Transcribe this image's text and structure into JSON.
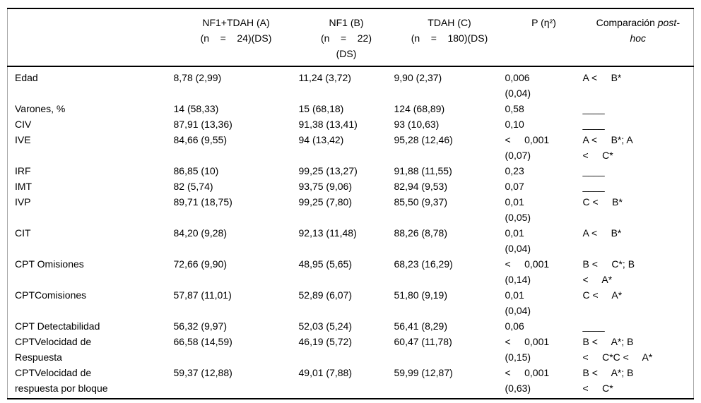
{
  "table": {
    "header": {
      "col_label": "",
      "col_a": "NF1+TDAH (A)\n(n    =    24)(DS)",
      "col_b": "NF1 (B)\n(n    =    22)\n(DS)",
      "col_c": "TDAH (C)\n(n    =    180)(DS)",
      "col_p": "P (η²)",
      "col_comp_normal": "Comparación ",
      "col_comp_italic": "post-\nhoc"
    },
    "rows": [
      {
        "label": "Edad",
        "a": "8,78 (2,99)",
        "b": "11,24 (3,72)",
        "c": "9,90 (2,37)",
        "p": "0,006\n(0,04)",
        "comp": "A <     B*"
      },
      {
        "label": "Varones, %",
        "a": "14 (58,33)",
        "b": "15 (68,18)",
        "c": "124 (68,89)",
        "p": "0,58",
        "comp": "____"
      },
      {
        "label": "CIV",
        "a": "87,91 (13,36)",
        "b": "91,38 (13,41)",
        "c": "93 (10,63)",
        "p": "0,10",
        "comp": "____"
      },
      {
        "label": "IVE",
        "a": "84,66 (9,55)",
        "b": "94 (13,42)",
        "c": "95,28 (12,46)",
        "p": "<     0,001\n(0,07)",
        "comp": "A <     B*; A\n<     C*"
      },
      {
        "label": "IRF",
        "a": "86,85 (10)",
        "b": "99,25 (13,27)",
        "c": "91,88 (11,55)",
        "p": "0,23",
        "comp": "____"
      },
      {
        "label": "IMT",
        "a": "82 (5,74)",
        "b": "93,75 (9,06)",
        "c": "82,94 (9,53)",
        "p": "0,07",
        "comp": "____"
      },
      {
        "label": "IVP",
        "a": "89,71 (18,75)",
        "b": "99,25 (7,80)",
        "c": "85,50 (9,37)",
        "p": "0,01\n(0,05)",
        "comp": "C <     B*"
      },
      {
        "label": "CIT",
        "a": "84,20 (9,28)",
        "b": "92,13 (11,48)",
        "c": "88,26 (8,78)",
        "p": "0,01\n(0,04)",
        "comp": "A <     B*"
      },
      {
        "label": "CPT Omisiones",
        "a": "72,66 (9,90)",
        "b": "48,95 (5,65)",
        "c": "68,23 (16,29)",
        "p": "<     0,001\n(0,14)",
        "comp": "B <     C*; B\n<     A*"
      },
      {
        "label": "CPTComisiones",
        "a": "57,87 (11,01)",
        "b": "52,89 (6,07)",
        "c": "51,80 (9,19)",
        "p": "0,01\n(0,04)",
        "comp": "C <     A*"
      },
      {
        "label": "CPT Detectabilidad",
        "a": "56,32 (9,97)",
        "b": "52,03 (5,24)",
        "c": "56,41 (8,29)",
        "p": "0,06",
        "comp": "____"
      },
      {
        "label": "CPTVelocidad de\nRespuesta",
        "a": "66,58 (14,59)",
        "b": "46,19 (5,72)",
        "c": "60,47 (11,78)",
        "p": "<     0,001\n(0,15)",
        "comp": "B <     A*; B\n<     C*C <     A*"
      },
      {
        "label": "CPTVelocidad de\nrespuesta por bloque",
        "a": "59,37 (12,88)",
        "b": "49,01 (7,88)",
        "c": "59,99 (12,87)",
        "p": "<     0,001\n(0,63)",
        "comp": "B <     A*; B\n<     C*"
      }
    ]
  }
}
